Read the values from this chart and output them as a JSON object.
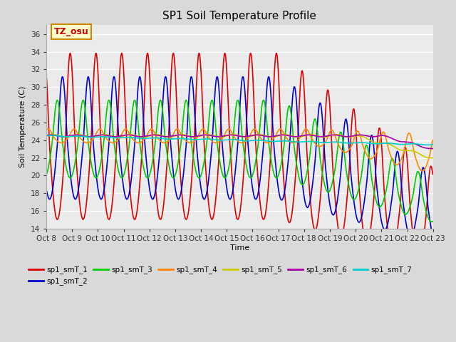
{
  "title": "SP1 Soil Temperature Profile",
  "xlabel": "Time",
  "ylabel": "Soil Temperature (C)",
  "ylim": [
    14,
    37
  ],
  "yticks": [
    14,
    16,
    18,
    20,
    22,
    24,
    26,
    28,
    30,
    32,
    34,
    36
  ],
  "xtick_labels": [
    "Oct 8",
    "Oct 9",
    "Oct 10",
    "Oct 11",
    "Oct 12",
    "Oct 13",
    "Oct 14",
    "Oct 15",
    "Oct 16",
    "Oct 17",
    "Oct 18",
    "Oct 19",
    "Oct 20",
    "Oct 21",
    "Oct 22",
    "Oct 23"
  ],
  "annotation_text": "TZ_osu",
  "annotation_color": "#cc0000",
  "annotation_bg": "#ffffcc",
  "annotation_border": "#cc8800",
  "series_colors": {
    "sp1_smT_1": "#dd0000",
    "sp1_smT_2": "#0000cc",
    "sp1_smT_3": "#00cc00",
    "sp1_smT_4": "#ff8800",
    "sp1_smT_5": "#cccc00",
    "sp1_smT_6": "#aa00aa",
    "sp1_smT_7": "#00cccc"
  },
  "bg_color": "#d9d9d9",
  "plot_bg": "#ebebeb",
  "grid_color": "#ffffff",
  "n_points": 1440,
  "total_days": 15
}
